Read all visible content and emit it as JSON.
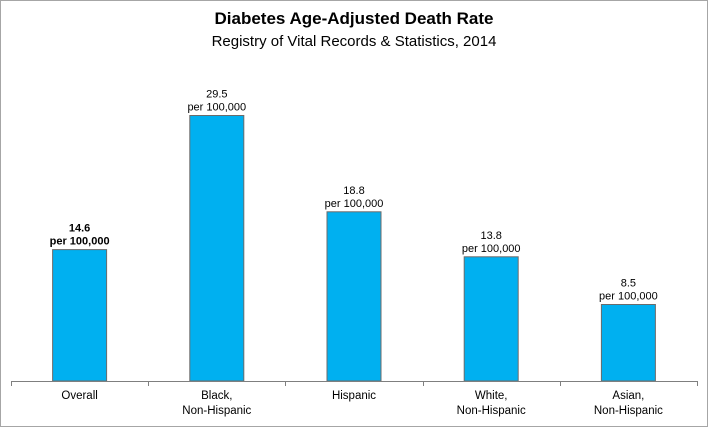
{
  "chart_data": {
    "type": "bar",
    "title": "Diabetes Age-Adjusted Death Rate",
    "subtitle": "Registry of Vital Records & Statistics, 2014",
    "xlabel": "",
    "ylabel": "",
    "ylim": [
      0,
      32
    ],
    "grid": false,
    "unit_label": "per 100,000",
    "categories": [
      [
        "Overall"
      ],
      [
        "Black,",
        "Non-Hispanic"
      ],
      [
        "Hispanic"
      ],
      [
        "White,",
        "Non-Hispanic"
      ],
      [
        "Asian,",
        "Non-Hispanic"
      ]
    ],
    "values": [
      14.6,
      29.5,
      18.8,
      13.8,
      8.5
    ],
    "value_labels": [
      "14.6",
      "29.5",
      "18.8",
      "13.8",
      "8.5"
    ],
    "bold_label_index": 0,
    "colors": {
      "bar": "#00b0f0",
      "bar_border": "#6b6b6b",
      "axis": "#7f7f7f"
    }
  }
}
